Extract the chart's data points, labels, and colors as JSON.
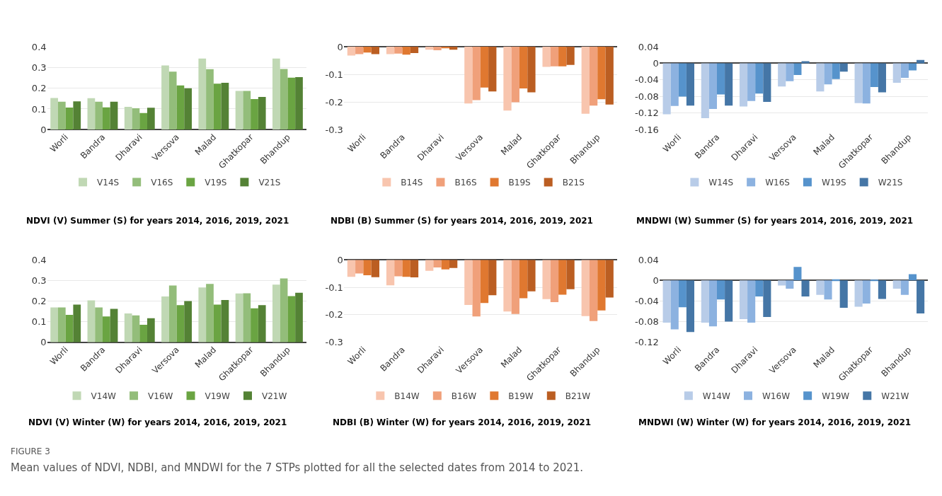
{
  "chart_data": [
    {
      "type": "bar",
      "title": "NDVI (V) Summer (S) for years 2014, 2016, 2019, 2021",
      "categories": [
        "Worli",
        "Bandra",
        "Dharavi",
        "Versova",
        "Malad",
        "Ghatkopar",
        "Bhandup"
      ],
      "ylim": [
        0,
        0.4
      ],
      "yticks": [
        0,
        0.1,
        0.2,
        0.3,
        0.4
      ],
      "grid": "y",
      "legend": "bottom",
      "series": [
        {
          "name": "V14S",
          "color": "#c0d8b4",
          "values": [
            0.153,
            0.152,
            0.11,
            0.31,
            0.343,
            0.187,
            0.343
          ]
        },
        {
          "name": "V16S",
          "color": "#93bd7a",
          "values": [
            0.135,
            0.135,
            0.103,
            0.28,
            0.292,
            0.187,
            0.293
          ]
        },
        {
          "name": "V19S",
          "color": "#6aa442",
          "values": [
            0.107,
            0.108,
            0.08,
            0.213,
            0.222,
            0.148,
            0.251
          ]
        },
        {
          "name": "V21S",
          "color": "#548235",
          "values": [
            0.137,
            0.135,
            0.106,
            0.2,
            0.226,
            0.158,
            0.253
          ]
        }
      ]
    },
    {
      "type": "bar",
      "title": "NDBI (B) Summer (S) for years 2014, 2016, 2019, 2021",
      "categories": [
        "Worli",
        "Bandra",
        "Dharavi",
        "Versova",
        "Malad",
        "Ghatkopar",
        "Bhandup"
      ],
      "ylim": [
        -0.3,
        0
      ],
      "yticks": [
        0,
        -0.1,
        -0.2,
        -0.3
      ],
      "grid": "y",
      "legend": "bottom",
      "series": [
        {
          "name": "B14S",
          "color": "#f8c5ae",
          "values": [
            -0.032,
            -0.027,
            -0.011,
            -0.205,
            -0.231,
            -0.073,
            -0.242
          ]
        },
        {
          "name": "B16S",
          "color": "#f0a07a",
          "values": [
            -0.027,
            -0.025,
            -0.013,
            -0.193,
            -0.201,
            -0.071,
            -0.213
          ]
        },
        {
          "name": "B19S",
          "color": "#e07830",
          "values": [
            -0.021,
            -0.029,
            -0.006,
            -0.148,
            -0.151,
            -0.071,
            -0.19
          ]
        },
        {
          "name": "B21S",
          "color": "#bb5e22",
          "values": [
            -0.027,
            -0.023,
            -0.011,
            -0.162,
            -0.165,
            -0.066,
            -0.209
          ]
        }
      ]
    },
    {
      "type": "bar",
      "title": "MNDWI (W) Summer (S) for years 2014, 2016, 2019, 2021",
      "categories": [
        "Worli",
        "Bandra",
        "Dharavi",
        "Versova",
        "Malad",
        "Ghatkopar",
        "Bhandup"
      ],
      "ylim": [
        -0.16,
        0.04
      ],
      "yticks": [
        -0.16,
        -0.12,
        -0.08,
        -0.04,
        0,
        0.04
      ],
      "grid": "y",
      "legend": "bottom",
      "series": [
        {
          "name": "W14S",
          "color": "#b8cce8",
          "values": [
            -0.123,
            -0.132,
            -0.104,
            -0.056,
            -0.068,
            -0.096,
            -0.047
          ]
        },
        {
          "name": "W16S",
          "color": "#8cb2e0",
          "values": [
            -0.103,
            -0.11,
            -0.091,
            -0.043,
            -0.051,
            -0.097,
            -0.035
          ]
        },
        {
          "name": "W19S",
          "color": "#5693cc",
          "values": [
            -0.08,
            -0.075,
            -0.073,
            -0.028,
            -0.038,
            -0.057,
            -0.017
          ]
        },
        {
          "name": "W21S",
          "color": "#4576a6",
          "values": [
            -0.102,
            -0.102,
            -0.093,
            0.005,
            -0.02,
            -0.07,
            0.008
          ]
        }
      ]
    },
    {
      "type": "bar",
      "title": "NDVI (V) Winter (W) for years 2014, 2016, 2019, 2021",
      "categories": [
        "Worli",
        "Bandra",
        "Dharavi",
        "Versova",
        "Malad",
        "Ghatkopar",
        "Bhandup"
      ],
      "ylim": [
        0,
        0.4
      ],
      "yticks": [
        0,
        0.1,
        0.2,
        0.3,
        0.4
      ],
      "grid": "y",
      "legend": "bottom",
      "series": [
        {
          "name": "V14W",
          "color": "#c0d8b4",
          "values": [
            0.169,
            0.203,
            0.14,
            0.222,
            0.266,
            0.237,
            0.28
          ]
        },
        {
          "name": "V16W",
          "color": "#93bd7a",
          "values": [
            0.169,
            0.169,
            0.13,
            0.275,
            0.283,
            0.238,
            0.31
          ]
        },
        {
          "name": "V19W",
          "color": "#6aa442",
          "values": [
            0.133,
            0.125,
            0.085,
            0.18,
            0.183,
            0.165,
            0.224
          ]
        },
        {
          "name": "V21W",
          "color": "#548235",
          "values": [
            0.183,
            0.162,
            0.117,
            0.2,
            0.205,
            0.18,
            0.24
          ]
        }
      ]
    },
    {
      "type": "bar",
      "title": "NDBI (B) Winter (W) for years 2014, 2016, 2019, 2021",
      "categories": [
        "Worli",
        "Bandra",
        "Dharavi",
        "Versova",
        "Malad",
        "Ghatkopar",
        "Bhandup"
      ],
      "ylim": [
        -0.3,
        0
      ],
      "yticks": [
        0,
        -0.1,
        -0.2,
        -0.3
      ],
      "grid": "y",
      "legend": "bottom",
      "series": [
        {
          "name": "B14W",
          "color": "#f8c5ae",
          "values": [
            -0.062,
            -0.093,
            -0.04,
            -0.164,
            -0.188,
            -0.143,
            -0.205
          ]
        },
        {
          "name": "B16W",
          "color": "#f0a07a",
          "values": [
            -0.05,
            -0.06,
            -0.028,
            -0.206,
            -0.197,
            -0.154,
            -0.223
          ]
        },
        {
          "name": "B19W",
          "color": "#e07830",
          "values": [
            -0.056,
            -0.062,
            -0.035,
            -0.157,
            -0.14,
            -0.127,
            -0.184
          ]
        },
        {
          "name": "B21W",
          "color": "#bb5e22",
          "values": [
            -0.063,
            -0.064,
            -0.03,
            -0.129,
            -0.115,
            -0.107,
            -0.137
          ]
        }
      ]
    },
    {
      "type": "bar",
      "title": "MNDWI (W) Winter (W) for years 2014, 2016, 2019, 2021",
      "categories": [
        "Worli",
        "Bandra",
        "Dharavi",
        "Versova",
        "Malad",
        "Ghatkopar",
        "Bhandup"
      ],
      "ylim": [
        -0.12,
        0.04
      ],
      "yticks": [
        -0.12,
        -0.08,
        -0.04,
        0,
        0.04
      ],
      "grid": "y",
      "legend": "bottom",
      "annotations": [
        "FIGURE 3",
        "Mean values of NDVI, NDBI, and MNDWI for the 7 STPs plotted for all the selected dates from 2014 to 2021."
      ],
      "series": [
        {
          "name": "W14W",
          "color": "#b8cce8",
          "values": [
            -0.082,
            -0.082,
            -0.075,
            -0.01,
            -0.028,
            -0.051,
            -0.016
          ]
        },
        {
          "name": "W16W",
          "color": "#8cb2e0",
          "values": [
            -0.095,
            -0.089,
            -0.082,
            -0.016,
            -0.037,
            -0.045,
            -0.028
          ]
        },
        {
          "name": "W19W",
          "color": "#5693cc",
          "values": [
            -0.052,
            -0.037,
            -0.031,
            0.026,
            0.002,
            0.001,
            0.012
          ]
        },
        {
          "name": "W21W",
          "color": "#4576a6",
          "values": [
            -0.1,
            -0.08,
            -0.071,
            -0.031,
            -0.053,
            -0.036,
            -0.064
          ]
        }
      ]
    }
  ]
}
